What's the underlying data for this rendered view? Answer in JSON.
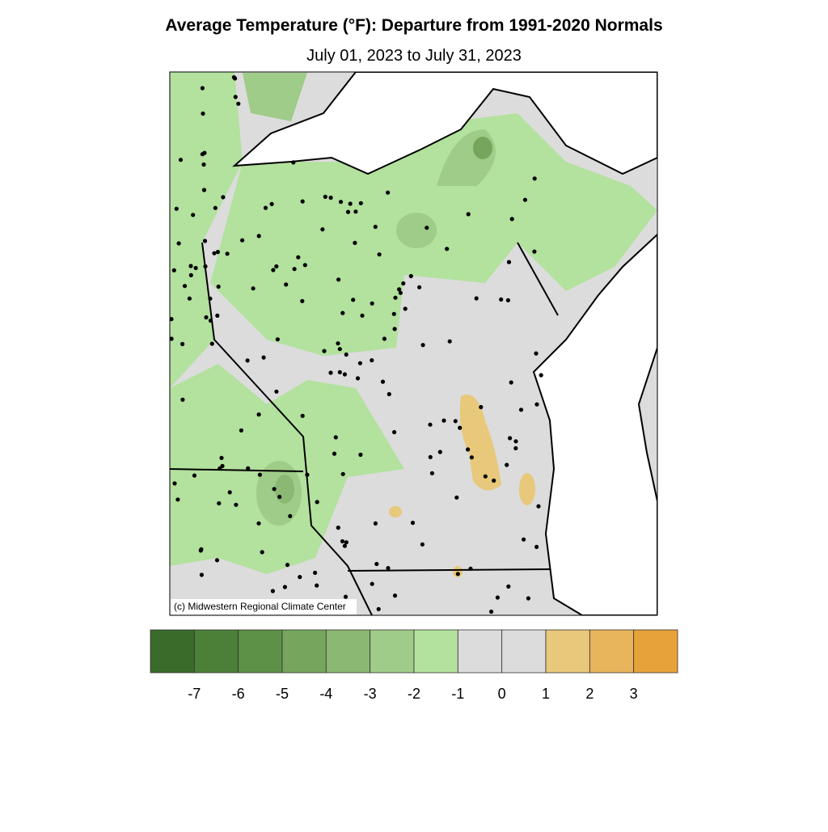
{
  "header": {
    "title": "Average Temperature (°F): Departure from 1991-2020 Normals",
    "subtitle": "July 01, 2023 to July 31, 2023"
  },
  "map": {
    "credit": "(c) Midwestern Regional Climate Center"
  },
  "legend": {
    "colors": [
      "#3b6b2a",
      "#4c7f37",
      "#5e9148",
      "#76a55d",
      "#8bb873",
      "#9fcc88",
      "#b3e19e",
      "#dcdcdc",
      "#dcdcdc",
      "#e8c87a",
      "#e8b45c",
      "#e8a23a"
    ],
    "breaks": [
      -7,
      -6,
      -5,
      -4,
      -3,
      -2,
      -1,
      0,
      1,
      2,
      3
    ]
  }
}
